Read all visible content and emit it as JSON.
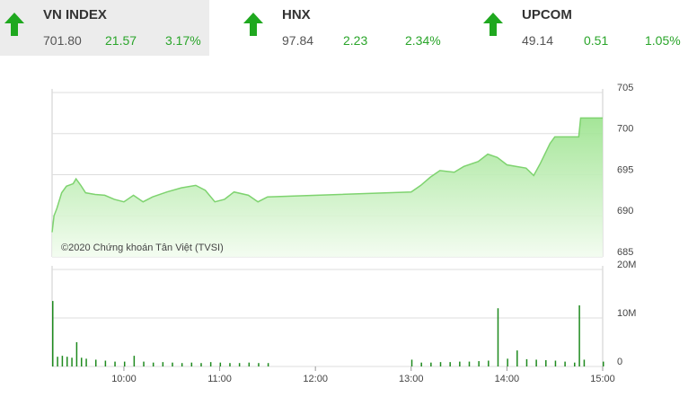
{
  "indices": [
    {
      "name": "VN INDEX",
      "value": "701.80",
      "change": "21.57",
      "percent": "3.17%"
    },
    {
      "name": "HNX",
      "value": "97.84",
      "change": "2.23",
      "percent": "2.34%"
    },
    {
      "name": "UPCOM",
      "value": "49.14",
      "change": "0.51",
      "percent": "1.05%"
    }
  ],
  "chart_data": [
    {
      "type": "area",
      "watermark": "©2020 Chứng khoán Tân Việt (TVSI)",
      "color": "#7ed36f",
      "x": [
        9.25,
        9.27,
        9.3,
        9.35,
        9.4,
        9.47,
        9.5,
        9.55,
        9.6,
        9.7,
        9.8,
        9.9,
        10.0,
        10.1,
        10.2,
        10.3,
        10.45,
        10.6,
        10.75,
        10.85,
        10.95,
        11.05,
        11.15,
        11.3,
        11.4,
        11.5,
        13.0,
        13.1,
        13.2,
        13.3,
        13.45,
        13.55,
        13.7,
        13.8,
        13.9,
        14.0,
        14.1,
        14.2,
        14.28,
        14.35,
        14.45,
        14.5,
        14.75,
        14.77,
        15.0
      ],
      "values": [
        688.0,
        690.0,
        690.9,
        692.8,
        693.6,
        693.9,
        694.5,
        693.7,
        692.8,
        692.6,
        692.5,
        692.0,
        691.7,
        692.5,
        691.7,
        692.3,
        692.9,
        693.4,
        693.7,
        693.1,
        691.7,
        692.0,
        692.9,
        692.5,
        691.7,
        692.3,
        692.9,
        693.7,
        694.7,
        695.5,
        695.3,
        696.0,
        696.6,
        697.5,
        697.1,
        696.2,
        696.0,
        695.8,
        694.9,
        696.4,
        698.8,
        699.6,
        699.6,
        701.9,
        701.9
      ],
      "xlim": [
        9.25,
        15
      ],
      "ylim": [
        685,
        705
      ],
      "yticks": [
        685,
        690,
        695,
        700,
        705
      ],
      "grid": true
    },
    {
      "type": "bar",
      "color": "#1e8a1e",
      "x": [
        9.25,
        9.3,
        9.35,
        9.4,
        9.45,
        9.5,
        9.55,
        9.6,
        9.7,
        9.8,
        9.9,
        10.0,
        10.1,
        10.2,
        10.3,
        10.4,
        10.5,
        10.6,
        10.7,
        10.8,
        10.9,
        11.0,
        11.1,
        11.2,
        11.3,
        11.4,
        11.5,
        13.0,
        13.1,
        13.2,
        13.3,
        13.4,
        13.5,
        13.6,
        13.7,
        13.8,
        13.9,
        14.0,
        14.1,
        14.2,
        14.3,
        14.4,
        14.5,
        14.6,
        14.7,
        14.75,
        14.8,
        15.0
      ],
      "values": [
        13500000,
        2000000,
        2200000,
        2000000,
        1800000,
        5000000,
        1800000,
        1600000,
        1400000,
        1200000,
        1000000,
        1000000,
        2200000,
        1000000,
        800000,
        900000,
        800000,
        700000,
        800000,
        700000,
        900000,
        800000,
        700000,
        700000,
        800000,
        700000,
        700000,
        1400000,
        800000,
        800000,
        900000,
        900000,
        1000000,
        1000000,
        1100000,
        1200000,
        12000000,
        1600000,
        3300000,
        1500000,
        1400000,
        1300000,
        1200000,
        1000000,
        800000,
        12600000,
        1400000,
        1000000
      ],
      "xlim": [
        9.25,
        15
      ],
      "ylim": [
        0,
        20000000
      ],
      "yticks": [
        {
          "value": 0,
          "label": "0"
        },
        {
          "value": 10000000,
          "label": "10M"
        },
        {
          "value": 20000000,
          "label": "20M"
        }
      ],
      "xticks": [
        {
          "value": 10,
          "label": "10:00"
        },
        {
          "value": 11,
          "label": "11:00"
        },
        {
          "value": 12,
          "label": "12:00"
        },
        {
          "value": 13,
          "label": "13:00"
        },
        {
          "value": 14,
          "label": "14:00"
        },
        {
          "value": 15,
          "label": "15:00"
        }
      ],
      "grid": true
    }
  ]
}
